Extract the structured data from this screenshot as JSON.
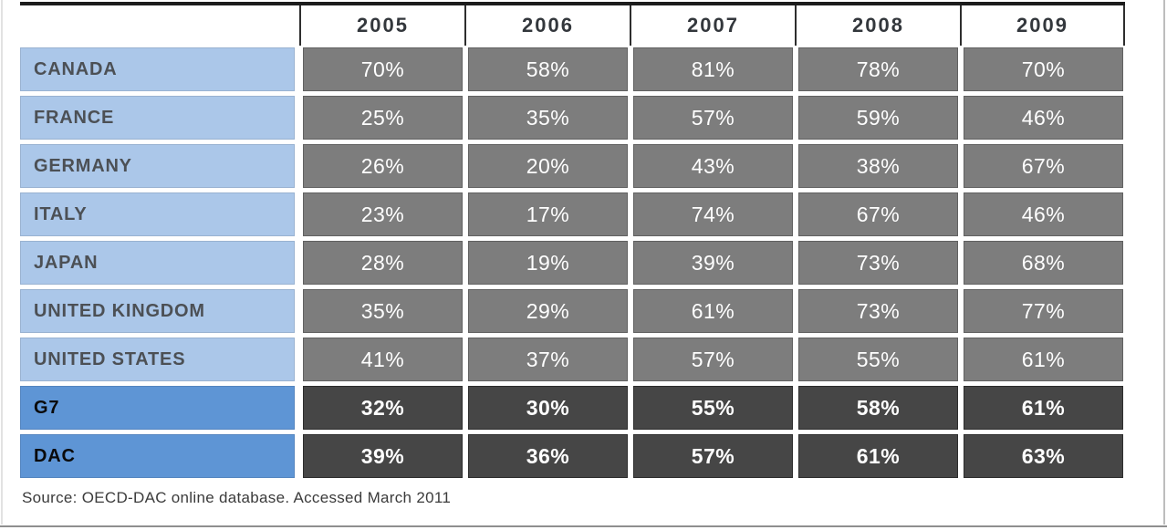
{
  "table": {
    "years": [
      "2005",
      "2006",
      "2007",
      "2008",
      "2009"
    ],
    "rows": [
      {
        "label": "CANADA",
        "values": [
          "70%",
          "58%",
          "81%",
          "78%",
          "70%"
        ],
        "summary": false
      },
      {
        "label": "FRANCE",
        "values": [
          "25%",
          "35%",
          "57%",
          "59%",
          "46%"
        ],
        "summary": false
      },
      {
        "label": "GERMANY",
        "values": [
          "26%",
          "20%",
          "43%",
          "38%",
          "67%"
        ],
        "summary": false
      },
      {
        "label": "ITALY",
        "values": [
          "23%",
          "17%",
          "74%",
          "67%",
          "46%"
        ],
        "summary": false
      },
      {
        "label": "JAPAN",
        "values": [
          "28%",
          "19%",
          "39%",
          "73%",
          "68%"
        ],
        "summary": false
      },
      {
        "label": "UNITED KINGDOM",
        "values": [
          "35%",
          "29%",
          "61%",
          "73%",
          "77%"
        ],
        "summary": false
      },
      {
        "label": "UNITED STATES",
        "values": [
          "41%",
          "37%",
          "57%",
          "55%",
          "61%"
        ],
        "summary": false
      },
      {
        "label": "G7",
        "values": [
          "32%",
          "30%",
          "55%",
          "58%",
          "61%"
        ],
        "summary": true
      },
      {
        "label": "DAC",
        "values": [
          "39%",
          "36%",
          "57%",
          "61%",
          "63%"
        ],
        "summary": true
      }
    ]
  },
  "source_note": "Source: OECD-DAC online database. Accessed March 2011",
  "colors": {
    "light_blue": "#abc7e9",
    "medium_blue": "#5e95d5",
    "cell_gray": "#7d7d7d",
    "cell_dark_gray": "#464646",
    "header_text": "#33373c",
    "label_text": "#4c5055",
    "summary_label_text": "#0a0a0a",
    "value_text": "#ffffff",
    "source_text": "#3b3b3b",
    "table_border": "#1c1c1c"
  },
  "chart_data": {
    "type": "table",
    "categories": [
      "2005",
      "2006",
      "2007",
      "2008",
      "2009"
    ],
    "series": [
      {
        "name": "CANADA",
        "values": [
          70,
          58,
          81,
          78,
          70
        ]
      },
      {
        "name": "FRANCE",
        "values": [
          25,
          35,
          57,
          59,
          46
        ]
      },
      {
        "name": "GERMANY",
        "values": [
          26,
          20,
          43,
          38,
          67
        ]
      },
      {
        "name": "ITALY",
        "values": [
          23,
          17,
          74,
          67,
          46
        ]
      },
      {
        "name": "JAPAN",
        "values": [
          28,
          19,
          39,
          73,
          68
        ]
      },
      {
        "name": "UNITED KINGDOM",
        "values": [
          35,
          29,
          61,
          73,
          77
        ]
      },
      {
        "name": "UNITED STATES",
        "values": [
          41,
          37,
          57,
          55,
          61
        ]
      },
      {
        "name": "G7",
        "values": [
          32,
          30,
          55,
          58,
          61
        ]
      },
      {
        "name": "DAC",
        "values": [
          39,
          36,
          57,
          61,
          63
        ]
      }
    ],
    "unit": "%",
    "title": "",
    "annotations": [
      "Source: OECD-DAC online database. Accessed March 2011"
    ],
    "layout": {
      "grid": false,
      "legend": "none",
      "value_range": [
        0,
        100
      ]
    }
  }
}
